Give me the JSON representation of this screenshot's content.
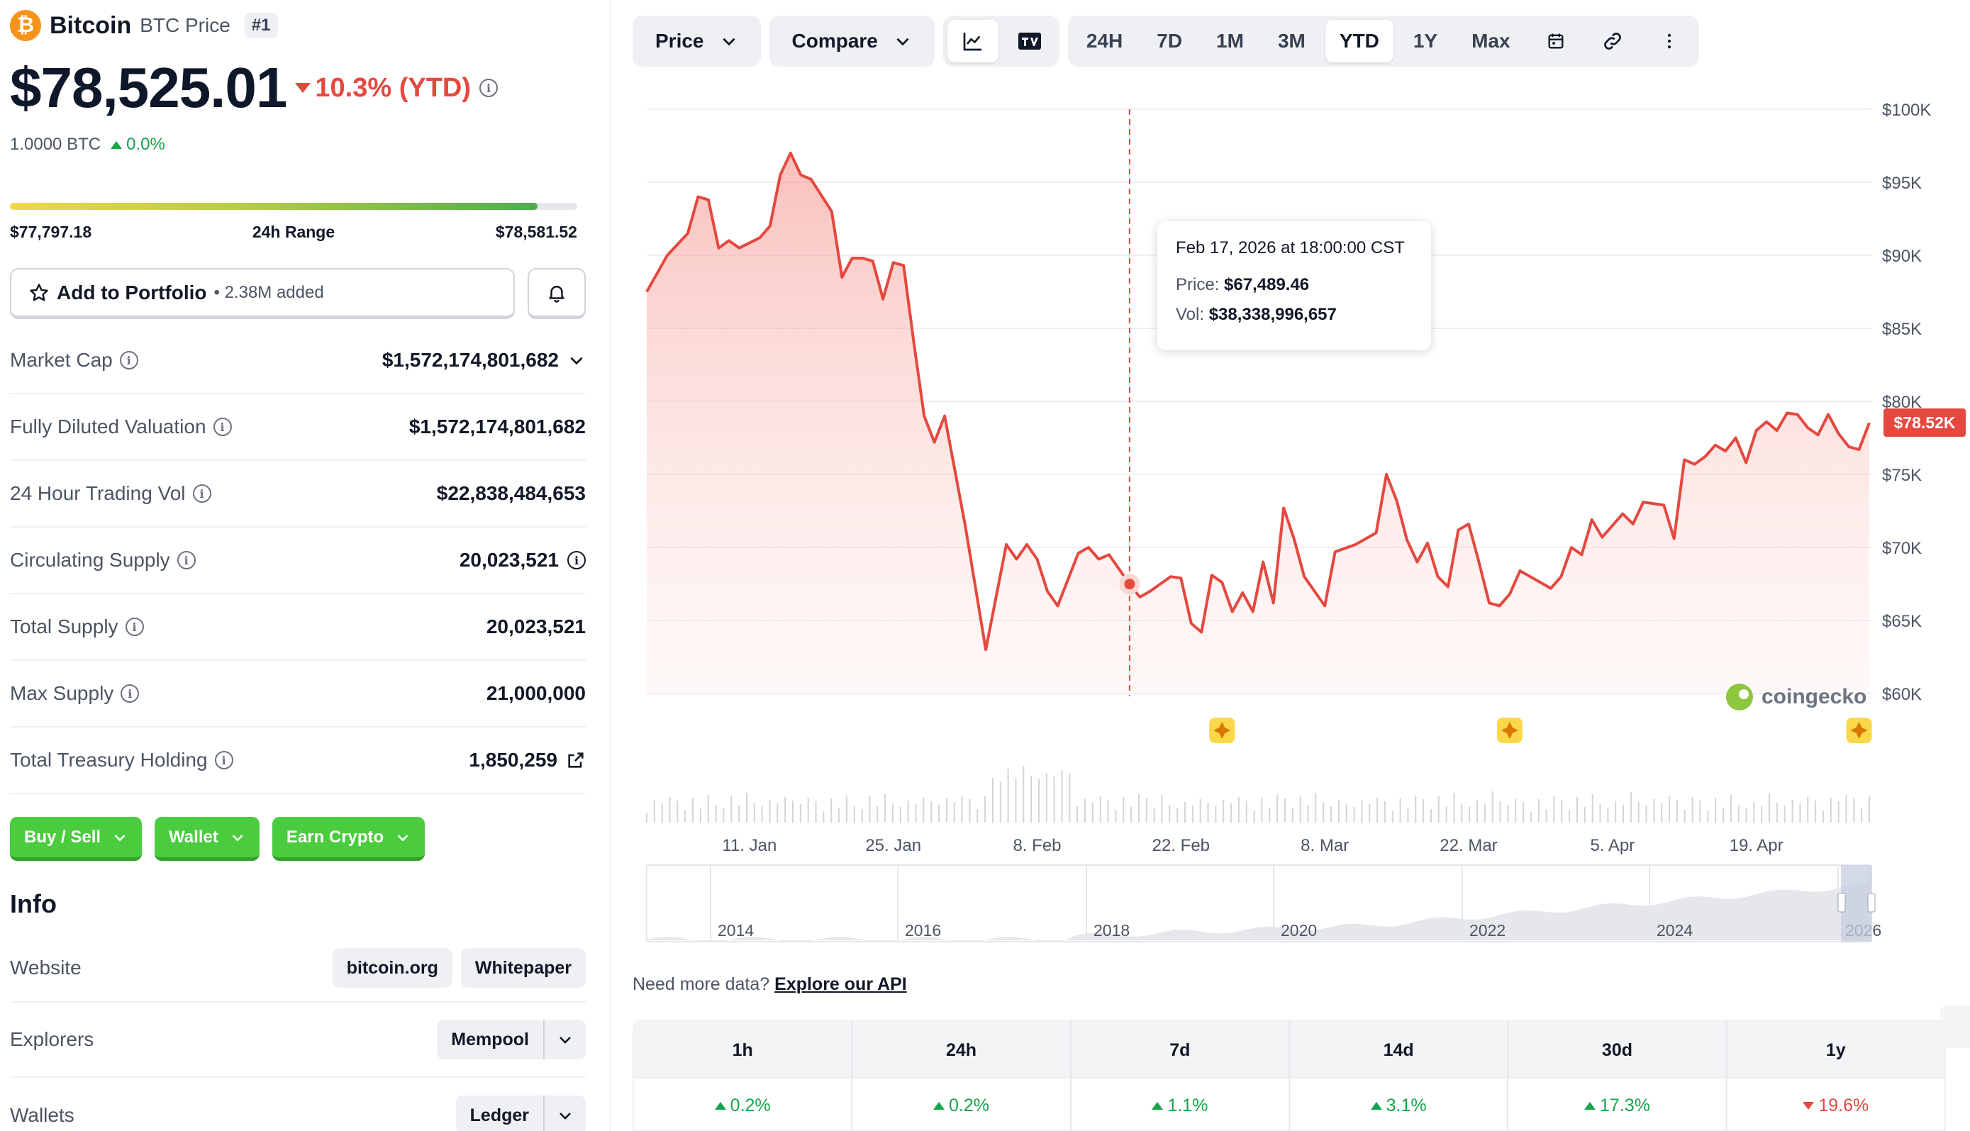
{
  "coin": {
    "logo_glyph": "₿",
    "name": "Bitcoin",
    "symbol_label": "BTC Price",
    "rank": "#1",
    "price": "$78,525.01",
    "change_pct": "10.3% (YTD)",
    "btc_value": "1.0000 BTC",
    "btc_change": "0.0%"
  },
  "range_24h": {
    "low": "$77,797.18",
    "label": "24h Range",
    "high": "$78,581.52",
    "fill_fraction": 0.93
  },
  "portfolio": {
    "label": "Add to Portfolio",
    "added": "• 2.38M added"
  },
  "stats": [
    {
      "label": "Market Cap",
      "value": "$1,572,174,801,682"
    },
    {
      "label": "Fully Diluted Valuation",
      "value": "$1,572,174,801,682"
    },
    {
      "label": "24 Hour Trading Vol",
      "value": "$22,838,484,653"
    },
    {
      "label": "Circulating Supply",
      "value": "20,023,521"
    },
    {
      "label": "Total Supply",
      "value": "20,023,521"
    },
    {
      "label": "Max Supply",
      "value": "21,000,000"
    },
    {
      "label": "Total Treasury Holding",
      "value": "1,850,259"
    }
  ],
  "actions": [
    "Buy / Sell",
    "Wallet",
    "Earn Crypto"
  ],
  "info": {
    "title": "Info",
    "website_label": "Website",
    "website_links": [
      "bitcoin.org",
      "Whitepaper"
    ],
    "explorers_label": "Explorers",
    "explorer": "Mempool",
    "wallets_label": "Wallets",
    "wallet": "Ledger"
  },
  "toolbar": {
    "price_label": "Price",
    "compare_label": "Compare",
    "ranges": [
      "24H",
      "7D",
      "1M",
      "3M",
      "YTD",
      "1Y",
      "Max"
    ],
    "active_range": "YTD"
  },
  "tooltip": {
    "date": "Feb 17, 2026 at 18:00:00 CST",
    "price_label": "Price:",
    "price_value": "$67,489.46",
    "vol_label": "Vol:",
    "vol_value": "$38,338,996,657"
  },
  "current_price_flag": "$78.52K",
  "watermark": "coingecko",
  "colors": {
    "line": "#e5483f",
    "up": "#16a34a",
    "down": "#e5483f",
    "green_button": "#4bcc3f"
  },
  "chart_data": {
    "type": "area",
    "series": [
      {
        "x": [
          "Jan 1",
          "Jan 3",
          "Jan 5",
          "Jan 6",
          "Jan 7",
          "Jan 8",
          "Jan 9",
          "Jan 10",
          "Jan 12",
          "Jan 13",
          "Jan 14",
          "Jan 15",
          "Jan 16",
          "Jan 17",
          "Jan 19",
          "Jan 20",
          "Jan 21",
          "Jan 22",
          "Jan 23",
          "Jan 24",
          "Jan 25",
          "Jan 26",
          "Jan 27",
          "Jan 28",
          "Jan 29",
          "Jan 30",
          "Feb 1",
          "Feb 3",
          "Feb 5",
          "Feb 6",
          "Feb 7",
          "Feb 8",
          "Feb 9",
          "Feb 10",
          "Feb 12",
          "Feb 13",
          "Feb 14",
          "Feb 15",
          "Feb 17",
          "Feb 18",
          "Feb 19",
          "Feb 21",
          "Feb 22",
          "Feb 23",
          "Feb 24",
          "Feb 25",
          "Feb 26",
          "Feb 27",
          "Feb 28",
          "Mar 1",
          "Mar 2",
          "Mar 3",
          "Mar 4",
          "Mar 5",
          "Mar 6",
          "Mar 8",
          "Mar 9",
          "Mar 11",
          "Mar 13",
          "Mar 14",
          "Mar 15",
          "Mar 16",
          "Mar 17",
          "Mar 18",
          "Mar 19",
          "Mar 20",
          "Mar 21",
          "Mar 22",
          "Mar 23",
          "Mar 24",
          "Mar 25",
          "Mar 26",
          "Mar 27",
          "Mar 28",
          "Mar 30",
          "Mar 31",
          "Apr 1",
          "Apr 2",
          "Apr 3",
          "Apr 4",
          "Apr 6",
          "Apr 7",
          "Apr 8",
          "Apr 10",
          "Apr 11",
          "Apr 12",
          "Apr 13",
          "Apr 14",
          "Apr 15",
          "Apr 16",
          "Apr 17",
          "Apr 18",
          "Apr 19",
          "Apr 20",
          "Apr 21",
          "Apr 22",
          "Apr 23",
          "Apr 24",
          "Apr 25",
          "Apr 26",
          "Apr 27",
          "Apr 28",
          "Apr 29",
          "Apr 30"
        ],
        "y": [
          87500,
          90000,
          91500,
          94000,
          93800,
          90500,
          91000,
          90500,
          91200,
          92000,
          95500,
          97000,
          95500,
          95200,
          93000,
          88500,
          89800,
          89800,
          89600,
          87000,
          89500,
          89300,
          84000,
          79000,
          77200,
          79000,
          71500,
          63000,
          70200,
          69200,
          70200,
          69200,
          67000,
          66000,
          69600,
          70000,
          69200,
          69500,
          67489,
          66600,
          67000,
          68000,
          67900,
          64800,
          64200,
          68100,
          67600,
          65600,
          66900,
          65600,
          69000,
          66200,
          72700,
          70600,
          68000,
          66000,
          69700,
          70200,
          71000,
          75000,
          73200,
          70500,
          69000,
          70300,
          68000,
          67300,
          71200,
          71600,
          69000,
          66200,
          66000,
          66800,
          68400,
          68000,
          67200,
          68000,
          70000,
          69500,
          71900,
          70700,
          72300,
          71600,
          73100,
          72900,
          70600,
          76000,
          75700,
          76200,
          77000,
          76600,
          77500,
          75800,
          78000,
          78600,
          78000,
          79200,
          79100,
          78200,
          77700,
          79100,
          77800,
          76900,
          76700,
          78525
        ]
      }
    ],
    "ylim": [
      60000,
      100000
    ],
    "y_ticks": [
      "$100K",
      "$95K",
      "$90K",
      "$85K",
      "$80K",
      "$75K",
      "$70K",
      "$65K",
      "$60K"
    ],
    "x_ticks": [
      "11. Jan",
      "25. Jan",
      "8. Feb",
      "22. Feb",
      "8. Mar",
      "22. Mar",
      "5. Apr",
      "19. Apr"
    ],
    "navigator_ticks": [
      "2014",
      "2016",
      "2018",
      "2020",
      "2022",
      "2024",
      "2026"
    ],
    "grid": true,
    "legend": "none"
  },
  "performance": {
    "headers": [
      "1h",
      "24h",
      "7d",
      "14d",
      "30d",
      "1y"
    ],
    "values": [
      "0.2%",
      "0.2%",
      "1.1%",
      "3.1%",
      "17.3%",
      "19.6%"
    ],
    "directions": [
      "up",
      "up",
      "up",
      "up",
      "up",
      "down"
    ]
  },
  "api": {
    "prefix": "Need more data?",
    "link": "Explore our API"
  }
}
